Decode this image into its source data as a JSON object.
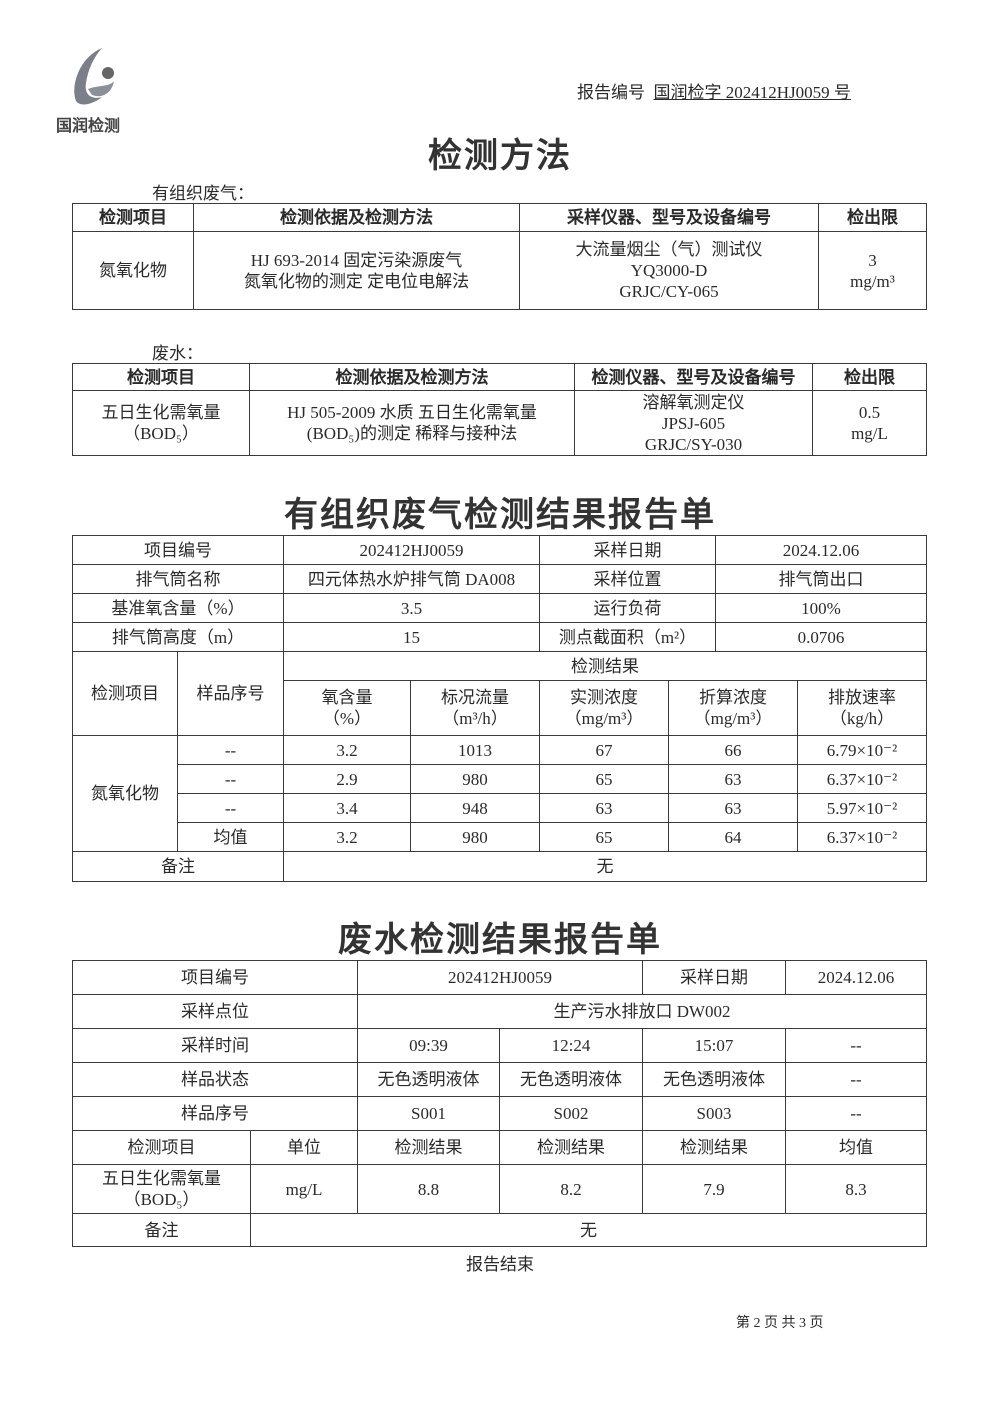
{
  "header": {
    "logo_text": "国润检测",
    "report_no_label": "报告编号",
    "report_no": "国润检字 202412HJ0059 号"
  },
  "methods": {
    "title": "检测方法",
    "gas": {
      "section": "有组织废气：",
      "headers": [
        "检测项目",
        "检测依据及检测方法",
        "采样仪器、型号及设备编号",
        "检出限"
      ],
      "row": {
        "item": "氮氧化物",
        "method": [
          "HJ 693-2014 固定污染源废气",
          "氮氧化物的测定  定电位电解法"
        ],
        "instrument": [
          "大流量烟尘（气）测试仪",
          "YQ3000-D",
          "GRJC/CY-065"
        ],
        "limit": [
          "3",
          "mg/m³"
        ]
      }
    },
    "water": {
      "section": "废水：",
      "headers": [
        "检测项目",
        "检测依据及检测方法",
        "检测仪器、型号及设备编号",
        "检出限"
      ],
      "row": {
        "item": [
          "五日生化需氧量",
          "（BOD₅）"
        ],
        "method": [
          "HJ 505-2009 水质  五日生化需氧量",
          "(BOD₅)的测定  稀释与接种法"
        ],
        "instrument": [
          "溶解氧测定仪",
          "JPSJ-605",
          "GRJC/SY-030"
        ],
        "limit": [
          "0.5",
          "mg/L"
        ]
      }
    }
  },
  "gas_report": {
    "title": "有组织废气检测结果报告单",
    "info": [
      [
        "项目编号",
        "202412HJ0059",
        "采样日期",
        "2024.12.06"
      ],
      [
        "排气筒名称",
        "四元体热水炉排气筒 DA008",
        "采样位置",
        "排气筒出口"
      ],
      [
        "基准氧含量（%）",
        "3.5",
        "运行负荷",
        "100%"
      ],
      [
        "排气筒高度（m）",
        "15",
        "测点截面积（m²）",
        "0.0706"
      ]
    ],
    "h_item": "检测项目",
    "h_sample": "样品序号",
    "h_results": "检测结果",
    "cols": [
      [
        "氧含量",
        "（%）"
      ],
      [
        "标况流量",
        "（m³/h）"
      ],
      [
        "实测浓度",
        "（mg/m³）"
      ],
      [
        "折算浓度",
        "（mg/m³）"
      ],
      [
        "排放速率",
        "（kg/h）"
      ]
    ],
    "pollutant": "氮氧化物",
    "rows": [
      [
        "--",
        "3.2",
        "1013",
        "67",
        "66",
        "6.79×10⁻²"
      ],
      [
        "--",
        "2.9",
        "980",
        "65",
        "63",
        "6.37×10⁻²"
      ],
      [
        "--",
        "3.4",
        "948",
        "63",
        "63",
        "5.97×10⁻²"
      ],
      [
        "均值",
        "3.2",
        "980",
        "65",
        "64",
        "6.37×10⁻²"
      ]
    ],
    "remark_label": "备注",
    "remark": "无"
  },
  "water_report": {
    "title": "废水检测结果报告单",
    "project_label": "项目编号",
    "project": "202412HJ0059",
    "date_label": "采样日期",
    "date": "2024.12.06",
    "point_label": "采样点位",
    "point": "生产污水排放口 DW002",
    "time_label": "采样时间",
    "times": [
      "09:39",
      "12:24",
      "15:07",
      "--"
    ],
    "state_label": "样品状态",
    "states": [
      "无色透明液体",
      "无色透明液体",
      "无色透明液体",
      "--"
    ],
    "sample_label": "样品序号",
    "samples": [
      "S001",
      "S002",
      "S003",
      "--"
    ],
    "h_item": "检测项目",
    "h_unit": "单位",
    "h_results": [
      "检测结果",
      "检测结果",
      "检测结果",
      "均值"
    ],
    "item": [
      "五日生化需氧量",
      "（BOD₅）"
    ],
    "unit": "mg/L",
    "values": [
      "8.8",
      "8.2",
      "7.9",
      "8.3"
    ],
    "remark_label": "备注",
    "remark": "无"
  },
  "footer": {
    "end": "报告结束",
    "page": "第 2 页  共 3 页"
  }
}
